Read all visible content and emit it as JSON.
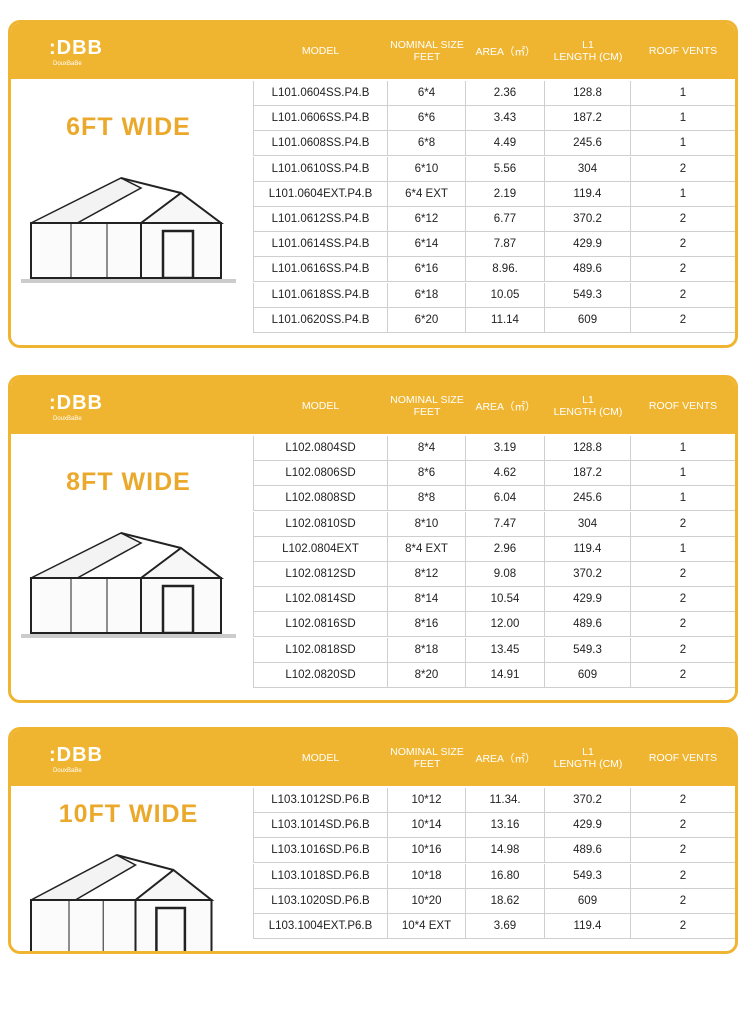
{
  "logo": {
    "mark": ":DBB",
    "tagline": "DouxBaBe"
  },
  "headers": [
    [
      "MODEL"
    ],
    [
      "NOMINAL SIZE",
      "FEET"
    ],
    [
      "AREA（㎡）"
    ],
    [
      "L1",
      "LENGTH (CM)"
    ],
    [
      "ROOF VENTS"
    ]
  ],
  "panels": [
    {
      "wide_label": "6FT WIDE",
      "rows": [
        [
          "L101.0604SS.P4.B",
          "6*4",
          "2.36",
          "128.8",
          "1"
        ],
        [
          "L101.0606SS.P4.B",
          "6*6",
          "3.43",
          "187.2",
          "1"
        ],
        [
          "L101.0608SS.P4.B",
          "6*8",
          "4.49",
          "245.6",
          "1"
        ],
        [
          "L101.0610SS.P4.B",
          "6*10",
          "5.56",
          "304",
          "2"
        ],
        [
          "L101.0604EXT.P4.B",
          "6*4 EXT",
          "2.19",
          "119.4",
          "1"
        ],
        [
          "L101.0612SS.P4.B",
          "6*12",
          "6.77",
          "370.2",
          "2"
        ],
        [
          "L101.0614SS.P4.B",
          "6*14",
          "7.87",
          "429.9",
          "2"
        ],
        [
          "L101.0616SS.P4.B",
          "6*16",
          "8.96.",
          "489.6",
          "2"
        ],
        [
          "L101.0618SS.P4.B",
          "6*18",
          "10.05",
          "549.3",
          "2"
        ],
        [
          "L101.0620SS.P4.B",
          "6*20",
          "11.14",
          "609",
          "2"
        ]
      ]
    },
    {
      "wide_label": "8FT WIDE",
      "rows": [
        [
          "L102.0804SD",
          "8*4",
          "3.19",
          "128.8",
          "1"
        ],
        [
          "L102.0806SD",
          "8*6",
          "4.62",
          "187.2",
          "1"
        ],
        [
          "L102.0808SD",
          "8*8",
          "6.04",
          "245.6",
          "1"
        ],
        [
          "L102.0810SD",
          "8*10",
          "7.47",
          "304",
          "2"
        ],
        [
          "L102.0804EXT",
          "8*4 EXT",
          "2.96",
          "119.4",
          "1"
        ],
        [
          "L102.0812SD",
          "8*12",
          "9.08",
          "370.2",
          "2"
        ],
        [
          "L102.0814SD",
          "8*14",
          "10.54",
          "429.9",
          "2"
        ],
        [
          "L102.0816SD",
          "8*16",
          "12.00",
          "489.6",
          "2"
        ],
        [
          "L102.0818SD",
          "8*18",
          "13.45",
          "549.3",
          "2"
        ],
        [
          "L102.0820SD",
          "8*20",
          "14.91",
          "609",
          "2"
        ]
      ]
    },
    {
      "wide_label": "10FT WIDE",
      "rows": [
        [
          "L103.1012SD.P6.B",
          "10*12",
          "11.34.",
          "370.2",
          "2"
        ],
        [
          "L103.1014SD.P6.B",
          "10*14",
          "13.16",
          "429.9",
          "2"
        ],
        [
          "L103.1016SD.P6.B",
          "10*16",
          "14.98",
          "489.6",
          "2"
        ],
        [
          "L103.1018SD.P6.B",
          "10*18",
          "16.80",
          "549.3",
          "2"
        ],
        [
          "L103.1020SD.P6.B",
          "10*20",
          "18.62",
          "609",
          "2"
        ],
        [
          "L103.1004EXT.P6.B",
          "10*4 EXT",
          "3.69",
          "119.4",
          "2"
        ]
      ]
    }
  ]
}
